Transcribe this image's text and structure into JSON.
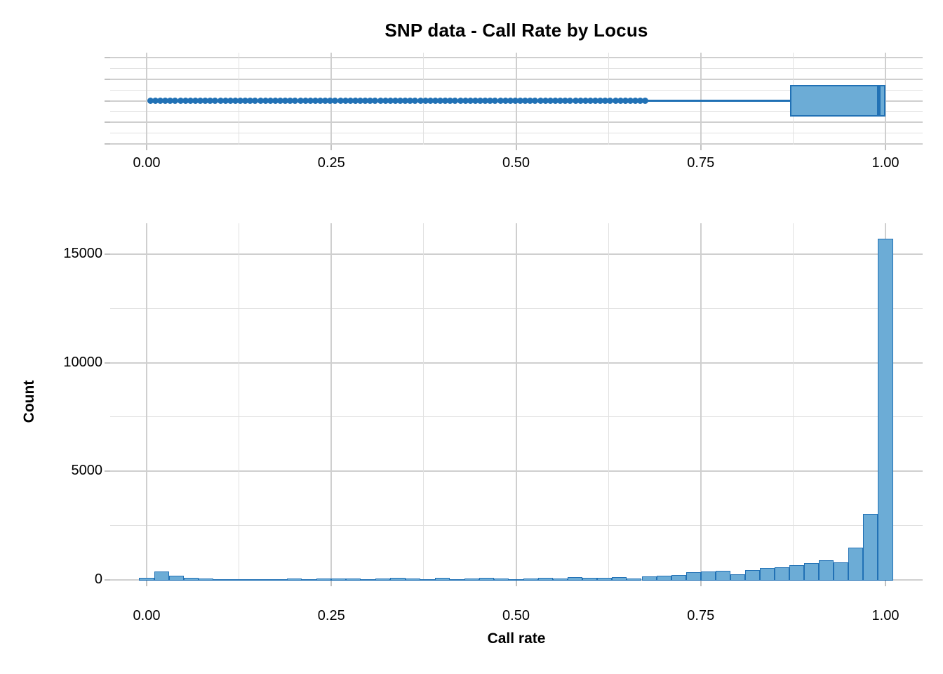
{
  "title": "SNP data - Call Rate by Locus",
  "colors": {
    "bar_fill": "#6cacd6",
    "bar_stroke": "#2171b5",
    "point": "#2171b5",
    "grid_major": "#cfcfcf",
    "grid_minor": "#e1e1e1",
    "tick_mark": "#c2c2c2",
    "text": "#000000",
    "background": "#ffffff"
  },
  "chart_data": [
    {
      "type": "boxplot",
      "orientation": "horizontal",
      "variable": "Call rate",
      "x_range": [
        0,
        1
      ],
      "x_tick_labels": [
        "0.00",
        "0.25",
        "0.50",
        "0.75",
        "1.00"
      ],
      "x_tick_values": [
        0,
        0.25,
        0.5,
        0.75,
        1.0
      ],
      "x_minor_values": [
        0.125,
        0.375,
        0.625,
        0.875
      ],
      "grid": "major and minor, no y labels",
      "stats": {
        "whisker_low": 0.675,
        "q1": 0.871,
        "median": 0.991,
        "q3": 1.0,
        "whisker_high": 1.0
      },
      "outliers": {
        "min": 0.005,
        "max": 0.675,
        "count": 100,
        "appearance": "dense even chain of dots"
      }
    },
    {
      "type": "bar",
      "subtype": "histogram",
      "xlabel": "Call rate",
      "ylabel": "Count",
      "x_range": [
        0,
        1
      ],
      "ylim": [
        0,
        16400
      ],
      "x_tick_labels": [
        "0.00",
        "0.25",
        "0.50",
        "0.75",
        "1.00"
      ],
      "x_tick_values": [
        0,
        0.25,
        0.5,
        0.75,
        1.0
      ],
      "x_minor_values": [
        0.125,
        0.375,
        0.625,
        0.875
      ],
      "y_tick_labels": [
        "0",
        "5000",
        "10000",
        "15000"
      ],
      "y_tick_values": [
        0,
        5000,
        10000,
        15000
      ],
      "y_minor_values": [
        2500,
        7500,
        12500
      ],
      "bin_width": 0.02,
      "bin_centers": [
        0.0,
        0.02,
        0.04,
        0.06,
        0.08,
        0.1,
        0.12,
        0.14,
        0.16,
        0.18,
        0.2,
        0.22,
        0.24,
        0.26,
        0.28,
        0.3,
        0.32,
        0.34,
        0.36,
        0.38,
        0.4,
        0.42,
        0.44,
        0.46,
        0.48,
        0.5,
        0.52,
        0.54,
        0.56,
        0.58,
        0.6,
        0.62,
        0.64,
        0.66,
        0.68,
        0.7,
        0.72,
        0.74,
        0.76,
        0.78,
        0.8,
        0.82,
        0.84,
        0.86,
        0.88,
        0.9,
        0.92,
        0.94,
        0.96,
        0.98,
        1.0
      ],
      "counts": [
        90,
        380,
        170,
        75,
        45,
        30,
        30,
        25,
        30,
        30,
        60,
        30,
        50,
        55,
        45,
        30,
        60,
        65,
        35,
        30,
        80,
        30,
        60,
        65,
        60,
        30,
        60,
        65,
        60,
        110,
        90,
        65,
        110,
        35,
        140,
        180,
        225,
        355,
        360,
        400,
        240,
        430,
        520,
        560,
        650,
        760,
        880,
        800,
        1480,
        3020,
        15700
      ]
    }
  ]
}
